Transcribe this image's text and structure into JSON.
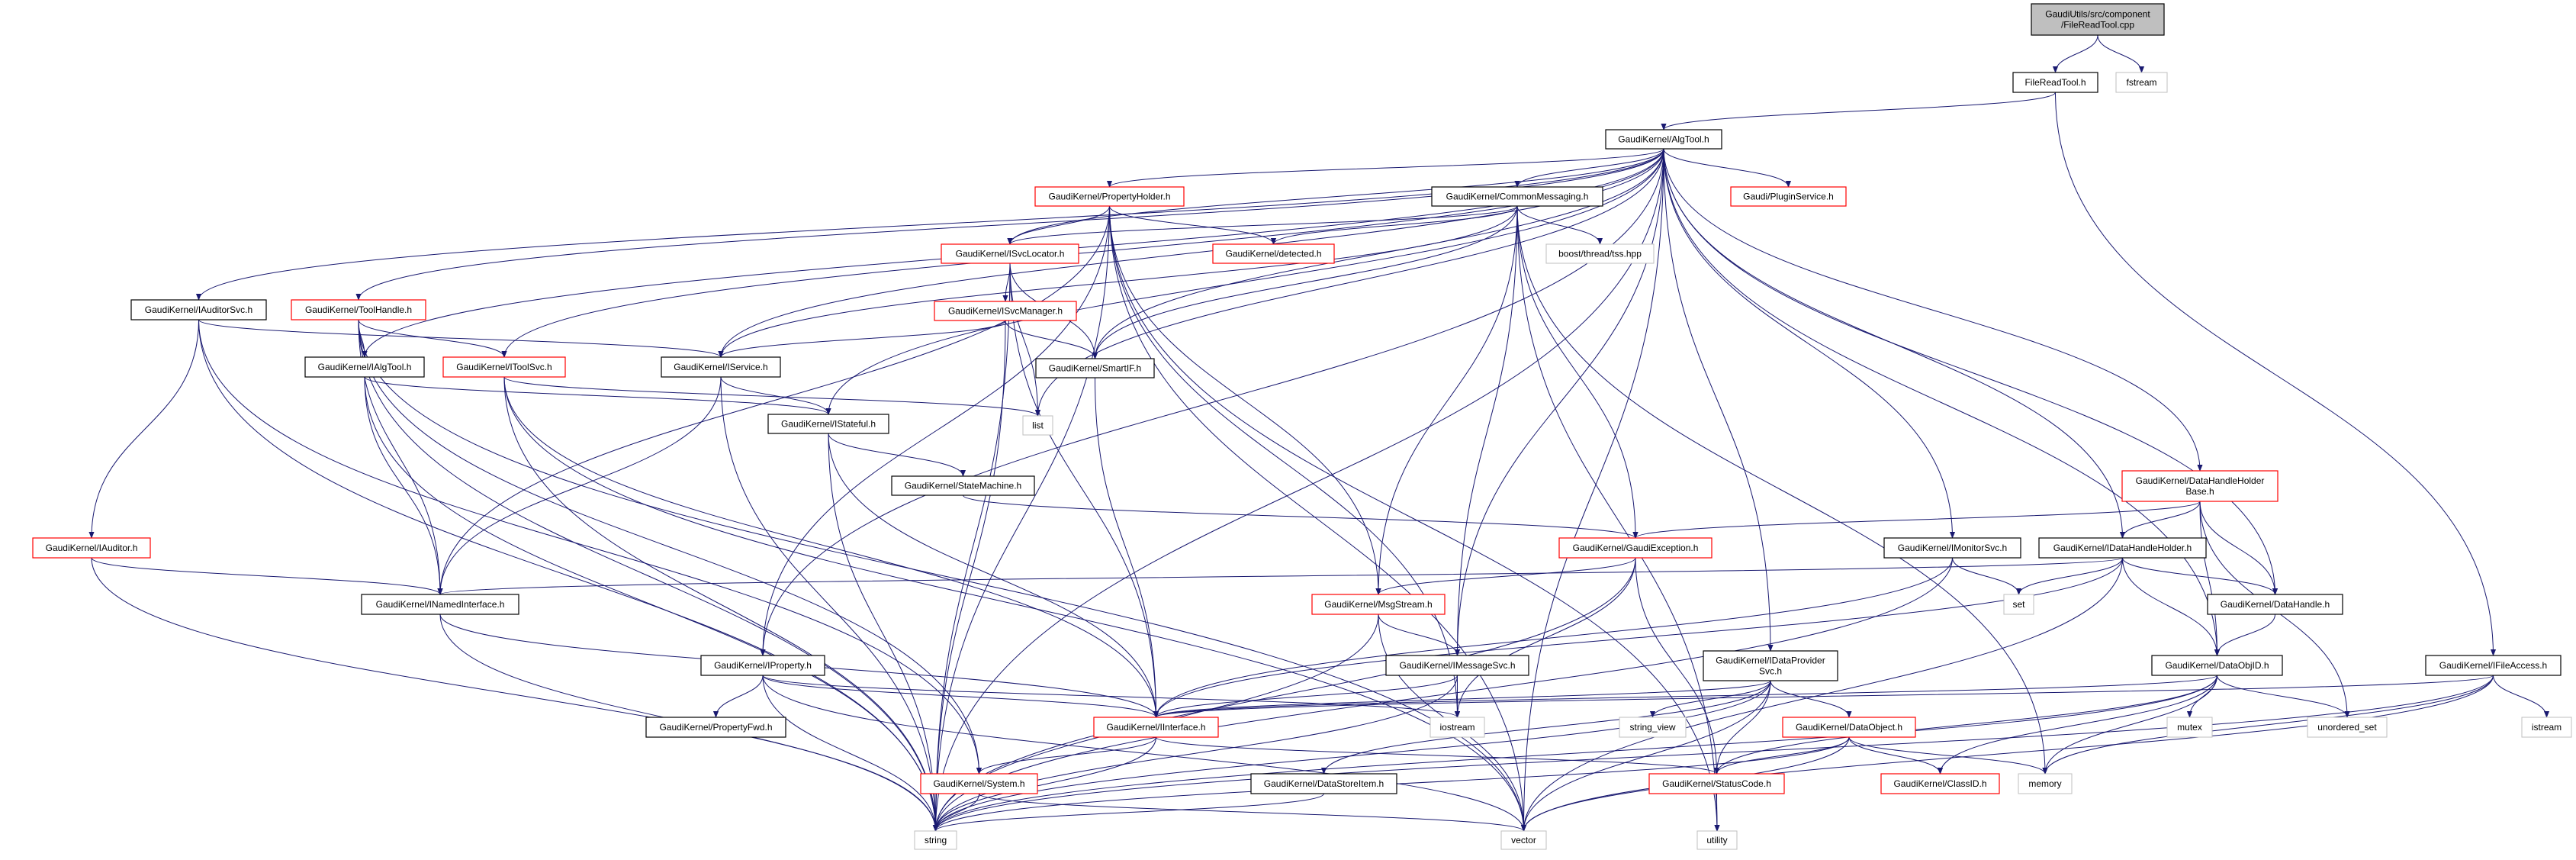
{
  "graph": {
    "type": "include-dependency-graph",
    "colors": {
      "edge": "#191970",
      "root_fill": "#bfbfbf",
      "border_documented": "#000000",
      "border_truncated": "#ff0000",
      "border_external": "#bfbfbf"
    },
    "nodes": [
      {
        "id": "root",
        "lines": [
          "GaudiUtils/src/component",
          "/FileReadTool.cpp"
        ],
        "kind": "root"
      },
      {
        "id": "FileReadTool",
        "lines": [
          "FileReadTool.h"
        ],
        "kind": "documented"
      },
      {
        "id": "fstream",
        "lines": [
          "fstream"
        ],
        "kind": "external"
      },
      {
        "id": "AlgTool",
        "lines": [
          "GaudiKernel/AlgTool.h"
        ],
        "kind": "documented"
      },
      {
        "id": "PluginService",
        "lines": [
          "Gaudi/PluginService.h"
        ],
        "kind": "truncated"
      },
      {
        "id": "CommonMessaging",
        "lines": [
          "GaudiKernel/CommonMessaging.h"
        ],
        "kind": "documented"
      },
      {
        "id": "PropertyHolder",
        "lines": [
          "GaudiKernel/PropertyHolder.h"
        ],
        "kind": "truncated"
      },
      {
        "id": "ISvcLocator",
        "lines": [
          "GaudiKernel/ISvcLocator.h"
        ],
        "kind": "truncated"
      },
      {
        "id": "detected",
        "lines": [
          "GaudiKernel/detected.h"
        ],
        "kind": "truncated"
      },
      {
        "id": "tss",
        "lines": [
          "boost/thread/tss.hpp"
        ],
        "kind": "external"
      },
      {
        "id": "ISvcManager",
        "lines": [
          "GaudiKernel/ISvcManager.h"
        ],
        "kind": "truncated"
      },
      {
        "id": "SmartIF",
        "lines": [
          "GaudiKernel/SmartIF.h"
        ],
        "kind": "documented"
      },
      {
        "id": "list",
        "lines": [
          "list"
        ],
        "kind": "external"
      },
      {
        "id": "IAuditorSvc",
        "lines": [
          "GaudiKernel/IAuditorSvc.h"
        ],
        "kind": "documented"
      },
      {
        "id": "ToolHandle",
        "lines": [
          "GaudiKernel/ToolHandle.h"
        ],
        "kind": "truncated"
      },
      {
        "id": "IAlgTool",
        "lines": [
          "GaudiKernel/IAlgTool.h"
        ],
        "kind": "documented"
      },
      {
        "id": "IToolSvc",
        "lines": [
          "GaudiKernel/IToolSvc.h"
        ],
        "kind": "truncated"
      },
      {
        "id": "IService",
        "lines": [
          "GaudiKernel/IService.h"
        ],
        "kind": "documented"
      },
      {
        "id": "IStateful",
        "lines": [
          "GaudiKernel/IStateful.h"
        ],
        "kind": "documented"
      },
      {
        "id": "StateMachine",
        "lines": [
          "GaudiKernel/StateMachine.h"
        ],
        "kind": "documented"
      },
      {
        "id": "IAuditor",
        "lines": [
          "GaudiKernel/IAuditor.h"
        ],
        "kind": "truncated"
      },
      {
        "id": "INamedInterface",
        "lines": [
          "GaudiKernel/INamedInterface.h"
        ],
        "kind": "documented"
      },
      {
        "id": "IProperty",
        "lines": [
          "GaudiKernel/IProperty.h"
        ],
        "kind": "documented"
      },
      {
        "id": "PropertyFwd",
        "lines": [
          "GaudiKernel/PropertyFwd.h"
        ],
        "kind": "documented"
      },
      {
        "id": "System",
        "lines": [
          "GaudiKernel/System.h"
        ],
        "kind": "truncated"
      },
      {
        "id": "string",
        "lines": [
          "string"
        ],
        "kind": "external"
      },
      {
        "id": "GaudiException",
        "lines": [
          "GaudiKernel/GaudiException.h"
        ],
        "kind": "truncated"
      },
      {
        "id": "MsgStream",
        "lines": [
          "GaudiKernel/MsgStream.h"
        ],
        "kind": "truncated"
      },
      {
        "id": "IMessageSvc",
        "lines": [
          "GaudiKernel/IMessageSvc.h"
        ],
        "kind": "documented"
      },
      {
        "id": "IDataProviderSvc",
        "lines": [
          "GaudiKernel/IDataProvider",
          "Svc.h"
        ],
        "kind": "documented"
      },
      {
        "id": "IInterface",
        "lines": [
          "GaudiKernel/IInterface.h"
        ],
        "kind": "truncated"
      },
      {
        "id": "iostream",
        "lines": [
          "iostream"
        ],
        "kind": "external"
      },
      {
        "id": "string_view",
        "lines": [
          "string_view"
        ],
        "kind": "external"
      },
      {
        "id": "DataObject",
        "lines": [
          "GaudiKernel/DataObject.h"
        ],
        "kind": "truncated"
      },
      {
        "id": "DataStoreItem",
        "lines": [
          "GaudiKernel/DataStoreItem.h"
        ],
        "kind": "documented"
      },
      {
        "id": "StatusCode",
        "lines": [
          "GaudiKernel/StatusCode.h"
        ],
        "kind": "truncated"
      },
      {
        "id": "ClassID",
        "lines": [
          "GaudiKernel/ClassID.h"
        ],
        "kind": "truncated"
      },
      {
        "id": "vector",
        "lines": [
          "vector"
        ],
        "kind": "external"
      },
      {
        "id": "utility",
        "lines": [
          "utility"
        ],
        "kind": "external"
      },
      {
        "id": "DataHandleHolderBase",
        "lines": [
          "GaudiKernel/DataHandleHolder",
          "Base.h"
        ],
        "kind": "truncated"
      },
      {
        "id": "IMonitorSvc",
        "lines": [
          "GaudiKernel/IMonitorSvc.h"
        ],
        "kind": "documented"
      },
      {
        "id": "IDataHandleHolder",
        "lines": [
          "GaudiKernel/IDataHandleHolder.h"
        ],
        "kind": "documented"
      },
      {
        "id": "set",
        "lines": [
          "set"
        ],
        "kind": "external"
      },
      {
        "id": "DataHandle",
        "lines": [
          "GaudiKernel/DataHandle.h"
        ],
        "kind": "documented"
      },
      {
        "id": "DataObjID",
        "lines": [
          "GaudiKernel/DataObjID.h"
        ],
        "kind": "documented"
      },
      {
        "id": "IFileAccess",
        "lines": [
          "GaudiKernel/IFileAccess.h"
        ],
        "kind": "documented"
      },
      {
        "id": "mutex",
        "lines": [
          "mutex"
        ],
        "kind": "external"
      },
      {
        "id": "unordered_set",
        "lines": [
          "unordered_set"
        ],
        "kind": "external"
      },
      {
        "id": "istream",
        "lines": [
          "istream"
        ],
        "kind": "external"
      },
      {
        "id": "memory",
        "lines": [
          "memory"
        ],
        "kind": "external"
      }
    ],
    "edges": [
      [
        "root",
        "FileReadTool"
      ],
      [
        "root",
        "fstream"
      ],
      [
        "FileReadTool",
        "AlgTool"
      ],
      [
        "FileReadTool",
        "IFileAccess"
      ],
      [
        "AlgTool",
        "IAuditorSvc"
      ],
      [
        "AlgTool",
        "ToolHandle"
      ],
      [
        "AlgTool",
        "IAlgTool"
      ],
      [
        "AlgTool",
        "IToolSvc"
      ],
      [
        "AlgTool",
        "IService"
      ],
      [
        "AlgTool",
        "IStateful"
      ],
      [
        "AlgTool",
        "PropertyHolder"
      ],
      [
        "AlgTool",
        "ISvcLocator"
      ],
      [
        "AlgTool",
        "CommonMessaging"
      ],
      [
        "AlgTool",
        "PluginService"
      ],
      [
        "AlgTool",
        "list"
      ],
      [
        "AlgTool",
        "IProperty"
      ],
      [
        "AlgTool",
        "SmartIF"
      ],
      [
        "AlgTool",
        "IMessageSvc"
      ],
      [
        "AlgTool",
        "IMonitorSvc"
      ],
      [
        "AlgTool",
        "IDataProviderSvc"
      ],
      [
        "AlgTool",
        "DataHandleHolderBase"
      ],
      [
        "AlgTool",
        "IDataHandleHolder"
      ],
      [
        "AlgTool",
        "DataHandle"
      ],
      [
        "AlgTool",
        "DataObjID"
      ],
      [
        "AlgTool",
        "vector"
      ],
      [
        "AlgTool",
        "string"
      ],
      [
        "PropertyHolder",
        "ISvcLocator"
      ],
      [
        "PropertyHolder",
        "detected"
      ],
      [
        "PropertyHolder",
        "IProperty"
      ],
      [
        "PropertyHolder",
        "INamedInterface"
      ],
      [
        "PropertyHolder",
        "MsgStream"
      ],
      [
        "PropertyHolder",
        "iostream"
      ],
      [
        "PropertyHolder",
        "vector"
      ],
      [
        "PropertyHolder",
        "string"
      ],
      [
        "PropertyHolder",
        "utility"
      ],
      [
        "CommonMessaging",
        "ISvcLocator"
      ],
      [
        "CommonMessaging",
        "detected"
      ],
      [
        "CommonMessaging",
        "tss"
      ],
      [
        "CommonMessaging",
        "IService"
      ],
      [
        "CommonMessaging",
        "SmartIF"
      ],
      [
        "CommonMessaging",
        "MsgStream"
      ],
      [
        "CommonMessaging",
        "IMessageSvc"
      ],
      [
        "CommonMessaging",
        "GaudiException"
      ],
      [
        "CommonMessaging",
        "memory"
      ],
      [
        "CommonMessaging",
        "utility"
      ],
      [
        "ISvcLocator",
        "ISvcManager"
      ],
      [
        "ISvcLocator",
        "SmartIF"
      ],
      [
        "ISvcLocator",
        "list"
      ],
      [
        "ISvcLocator",
        "IInterface"
      ],
      [
        "ISvcLocator",
        "string"
      ],
      [
        "ISvcManager",
        "IService"
      ],
      [
        "ISvcManager",
        "SmartIF"
      ],
      [
        "ISvcManager",
        "string"
      ],
      [
        "SmartIF",
        "IInterface"
      ],
      [
        "IAuditorSvc",
        "IService"
      ],
      [
        "IAuditorSvc",
        "IAuditor"
      ],
      [
        "IAuditorSvc",
        "System"
      ],
      [
        "IAuditorSvc",
        "string"
      ],
      [
        "ToolHandle",
        "IAlgTool"
      ],
      [
        "ToolHandle",
        "IToolSvc"
      ],
      [
        "ToolHandle",
        "INamedInterface"
      ],
      [
        "ToolHandle",
        "string"
      ],
      [
        "ToolHandle",
        "System"
      ],
      [
        "ToolHandle",
        "vector"
      ],
      [
        "IAlgTool",
        "IStateful"
      ],
      [
        "IAlgTool",
        "INamedInterface"
      ],
      [
        "IAlgTool",
        "string"
      ],
      [
        "IToolSvc",
        "list"
      ],
      [
        "IToolSvc",
        "IInterface"
      ],
      [
        "IToolSvc",
        "string"
      ],
      [
        "IToolSvc",
        "vector"
      ],
      [
        "IService",
        "IStateful"
      ],
      [
        "IService",
        "INamedInterface"
      ],
      [
        "IService",
        "string"
      ],
      [
        "IStateful",
        "StateMachine"
      ],
      [
        "IStateful",
        "IInterface"
      ],
      [
        "IStateful",
        "string"
      ],
      [
        "StateMachine",
        "GaudiException"
      ],
      [
        "IAuditor",
        "INamedInterface"
      ],
      [
        "IAuditor",
        "string"
      ],
      [
        "INamedInterface",
        "IInterface"
      ],
      [
        "INamedInterface",
        "string"
      ],
      [
        "IProperty",
        "PropertyFwd"
      ],
      [
        "IProperty",
        "IInterface"
      ],
      [
        "IProperty",
        "string"
      ],
      [
        "IProperty",
        "iostream"
      ],
      [
        "IProperty",
        "vector"
      ],
      [
        "GaudiException",
        "MsgStream"
      ],
      [
        "GaudiException",
        "StatusCode"
      ],
      [
        "GaudiException",
        "iostream"
      ],
      [
        "GaudiException",
        "string"
      ],
      [
        "MsgStream",
        "IMessageSvc"
      ],
      [
        "MsgStream",
        "string"
      ],
      [
        "MsgStream",
        "vector"
      ],
      [
        "IMessageSvc",
        "IInterface"
      ],
      [
        "IMessageSvc",
        "iostream"
      ],
      [
        "IMessageSvc",
        "string"
      ],
      [
        "IInterface",
        "System"
      ],
      [
        "IInterface",
        "StatusCode"
      ],
      [
        "IInterface",
        "string"
      ],
      [
        "System",
        "string"
      ],
      [
        "System",
        "vector"
      ],
      [
        "DataStoreItem",
        "string"
      ],
      [
        "IDataProviderSvc",
        "IInterface"
      ],
      [
        "IDataProviderSvc",
        "DataObject"
      ],
      [
        "IDataProviderSvc",
        "StatusCode"
      ],
      [
        "IDataProviderSvc",
        "string_view"
      ],
      [
        "IDataProviderSvc",
        "string"
      ],
      [
        "IDataProviderSvc",
        "vector"
      ],
      [
        "IDataProviderSvc",
        "DataStoreItem"
      ],
      [
        "DataObject",
        "StatusCode"
      ],
      [
        "DataObject",
        "ClassID"
      ],
      [
        "DataObject",
        "memory"
      ],
      [
        "DataObject",
        "string"
      ],
      [
        "DataObject",
        "vector"
      ],
      [
        "StatusCode",
        "utility"
      ],
      [
        "IMonitorSvc",
        "IInterface"
      ],
      [
        "IMonitorSvc",
        "set"
      ],
      [
        "IMonitorSvc",
        "string"
      ],
      [
        "DataHandleHolderBase",
        "GaudiException"
      ],
      [
        "DataHandleHolderBase",
        "IDataHandleHolder"
      ],
      [
        "DataHandleHolderBase",
        "DataHandle"
      ],
      [
        "DataHandleHolderBase",
        "DataObjID"
      ],
      [
        "DataHandleHolderBase",
        "unordered_set"
      ],
      [
        "IDataHandleHolder",
        "INamedInterface"
      ],
      [
        "IDataHandleHolder",
        "set"
      ],
      [
        "IDataHandleHolder",
        "DataHandle"
      ],
      [
        "IDataHandleHolder",
        "DataObjID"
      ],
      [
        "IDataHandleHolder",
        "IInterface"
      ],
      [
        "IDataHandleHolder",
        "vector"
      ],
      [
        "DataHandle",
        "DataObjID"
      ],
      [
        "DataObjID",
        "IInterface"
      ],
      [
        "DataObjID",
        "mutex"
      ],
      [
        "DataObjID",
        "unordered_set"
      ],
      [
        "DataObjID",
        "StatusCode"
      ],
      [
        "DataObjID",
        "ClassID"
      ],
      [
        "DataObjID",
        "memory"
      ],
      [
        "DataObjID",
        "string"
      ],
      [
        "IFileAccess",
        "IInterface"
      ],
      [
        "IFileAccess",
        "istream"
      ],
      [
        "IFileAccess",
        "memory"
      ],
      [
        "IFileAccess",
        "string"
      ],
      [
        "IFileAccess",
        "vector"
      ]
    ]
  }
}
